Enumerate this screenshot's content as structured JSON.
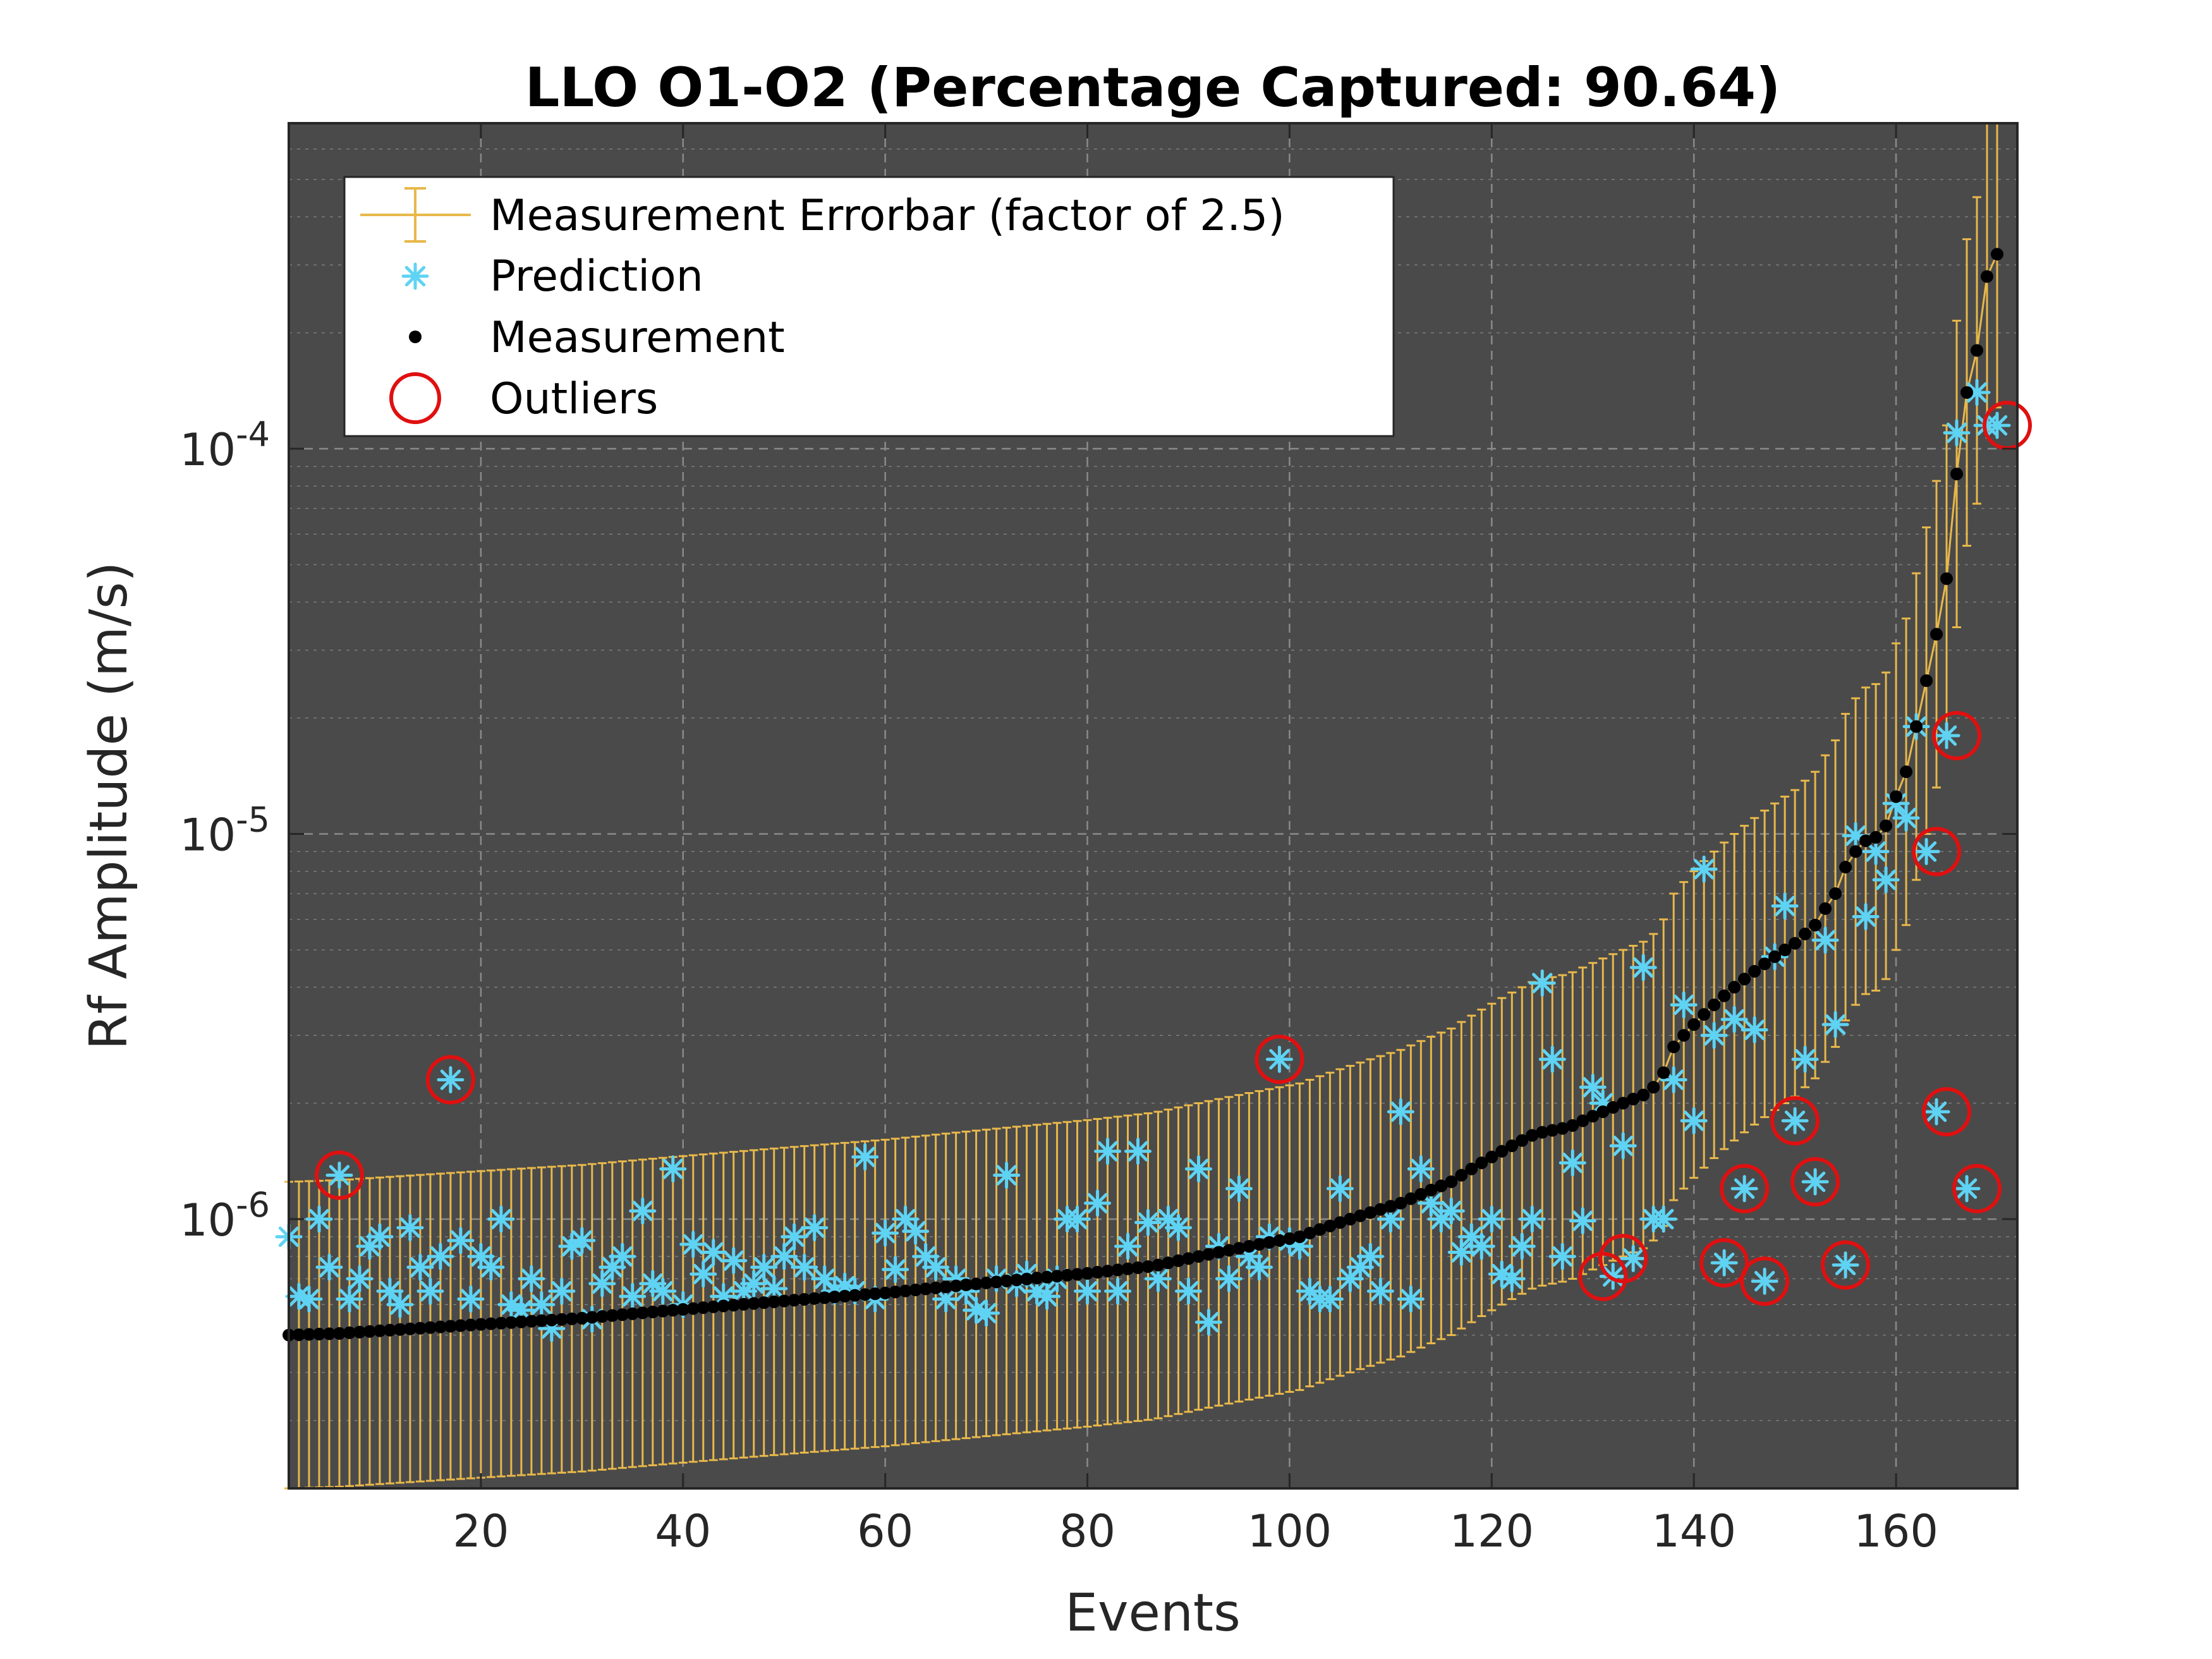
{
  "chart_data": {
    "type": "scatter",
    "title": "LLO O1-O2 (Percentage Captured: 90.64)",
    "xlabel": "Events",
    "ylabel": "Rf Amplitude (m/s)",
    "xlim": [
      1,
      172
    ],
    "ylim": [
      2e-07,
      0.0007
    ],
    "yscale": "log",
    "grid": true,
    "x_ticks": [
      {
        "value": 20,
        "label": "20"
      },
      {
        "value": 40,
        "label": "40"
      },
      {
        "value": 60,
        "label": "60"
      },
      {
        "value": 80,
        "label": "80"
      },
      {
        "value": 100,
        "label": "100"
      },
      {
        "value": 120,
        "label": "120"
      },
      {
        "value": 140,
        "label": "140"
      },
      {
        "value": 160,
        "label": "160"
      }
    ],
    "y_ticks": [
      {
        "value": 1e-06,
        "base": "10",
        "exp": "-6"
      },
      {
        "value": 1e-05,
        "base": "10",
        "exp": "-5"
      },
      {
        "value": 0.0001,
        "base": "10",
        "exp": "-4"
      }
    ],
    "legend": {
      "placement": "top-left",
      "entries": [
        {
          "label": "Measurement Errorbar (factor of 2.5)",
          "marker": "errorbar"
        },
        {
          "label": "Prediction",
          "marker": "asterisk"
        },
        {
          "label": "Measurement",
          "marker": "dot"
        },
        {
          "label": "Outliers",
          "marker": "circle"
        }
      ]
    },
    "errorbar_factor": 2.5,
    "colors": {
      "plot_background": "#4a4a4a",
      "grid": "#8a8a8a",
      "errorbar": "#e8b84a",
      "prediction": "#5fd3f3",
      "measurement": "#000000",
      "outlier": "#e01010"
    },
    "measurement": [
      5e-07,
      5.01e-07,
      5.02e-07,
      5.03e-07,
      5.04e-07,
      5.05e-07,
      5.07e-07,
      5.09e-07,
      5.11e-07,
      5.13e-07,
      5.15e-07,
      5.17e-07,
      5.19e-07,
      5.21e-07,
      5.23e-07,
      5.25e-07,
      5.27e-07,
      5.29e-07,
      5.31e-07,
      5.33e-07,
      5.35e-07,
      5.37e-07,
      5.39e-07,
      5.41e-07,
      5.43e-07,
      5.45e-07,
      5.47e-07,
      5.49e-07,
      5.51e-07,
      5.53e-07,
      5.56e-07,
      5.59e-07,
      5.62e-07,
      5.65e-07,
      5.68e-07,
      5.71e-07,
      5.74e-07,
      5.77e-07,
      5.8e-07,
      5.83e-07,
      5.86e-07,
      5.89e-07,
      5.92e-07,
      5.95e-07,
      5.98e-07,
      6.01e-07,
      6.04e-07,
      6.07e-07,
      6.1e-07,
      6.13e-07,
      6.16e-07,
      6.19e-07,
      6.22e-07,
      6.25e-07,
      6.28e-07,
      6.31e-07,
      6.34e-07,
      6.37e-07,
      6.4e-07,
      6.43e-07,
      6.47e-07,
      6.51e-07,
      6.55e-07,
      6.59e-07,
      6.63e-07,
      6.67e-07,
      6.71e-07,
      6.75e-07,
      6.79e-07,
      6.83e-07,
      6.87e-07,
      6.91e-07,
      6.95e-07,
      6.99e-07,
      7.03e-07,
      7.07e-07,
      7.11e-07,
      7.15e-07,
      7.19e-07,
      7.23e-07,
      7.28e-07,
      7.33e-07,
      7.38e-07,
      7.43e-07,
      7.48e-07,
      7.53e-07,
      7.6e-07,
      7.7e-07,
      7.8e-07,
      7.9e-07,
      8e-07,
      8.1e-07,
      8.2e-07,
      8.3e-07,
      8.4e-07,
      8.5e-07,
      8.6e-07,
      8.7e-07,
      8.8e-07,
      8.9e-07,
      9e-07,
      9.2e-07,
      9.4e-07,
      9.6e-07,
      9.8e-07,
      1e-06,
      1.02e-06,
      1.04e-06,
      1.06e-06,
      1.08e-06,
      1.1e-06,
      1.13e-06,
      1.16e-06,
      1.19e-06,
      1.22e-06,
      1.25e-06,
      1.3e-06,
      1.35e-06,
      1.4e-06,
      1.45e-06,
      1.5e-06,
      1.55e-06,
      1.6e-06,
      1.65e-06,
      1.68e-06,
      1.7e-06,
      1.72e-06,
      1.75e-06,
      1.8e-06,
      1.85e-06,
      1.9e-06,
      1.95e-06,
      2e-06,
      2.05e-06,
      2.1e-06,
      2.2e-06,
      2.4e-06,
      2.8e-06,
      3e-06,
      3.2e-06,
      3.4e-06,
      3.6e-06,
      3.8e-06,
      4e-06,
      4.2e-06,
      4.4e-06,
      4.6e-06,
      4.8e-06,
      5e-06,
      5.2e-06,
      5.5e-06,
      5.8e-06,
      6.4e-06,
      7e-06,
      8.2e-06,
      9e-06,
      9.6e-06,
      9.8e-06,
      1.05e-05,
      1.25e-05,
      1.45e-05,
      1.9e-05,
      2.5e-05,
      3.3e-05,
      4.6e-05,
      8.6e-05,
      0.00014,
      0.00018,
      0.00028,
      0.00032
    ],
    "prediction": [
      9e-07,
      6.3e-07,
      6.2e-07,
      1e-06,
      7.5e-07,
      1.3e-06,
      6.2e-07,
      7e-07,
      8.5e-07,
      9e-07,
      6.5e-07,
      6e-07,
      9.5e-07,
      7.5e-07,
      6.5e-07,
      8e-07,
      2.3e-06,
      8.8e-07,
      6.2e-07,
      8e-07,
      7.5e-07,
      1e-06,
      6e-07,
      5.8e-07,
      7e-07,
      6e-07,
      5.2e-07,
      6.5e-07,
      8.5e-07,
      8.8e-07,
      5.5e-07,
      6.8e-07,
      7.5e-07,
      8e-07,
      6.3e-07,
      1.05e-06,
      6.8e-07,
      6.5e-07,
      1.35e-06,
      6e-07,
      8.6e-07,
      7.2e-07,
      8.2e-07,
      6.3e-07,
      7.8e-07,
      6.5e-07,
      6.8e-07,
      7.5e-07,
      6.6e-07,
      8e-07,
      9e-07,
      7.5e-07,
      9.5e-07,
      7e-07,
      6.5e-07,
      6.7e-07,
      6.5e-07,
      1.45e-06,
      6.2e-07,
      9.2e-07,
      7.4e-07,
      1e-06,
      9.3e-07,
      8e-07,
      7.5e-07,
      6.2e-07,
      7e-07,
      6.5e-07,
      5.8e-07,
      5.7e-07,
      7e-07,
      1.3e-06,
      6.8e-07,
      7.2e-07,
      6.5e-07,
      6.3e-07,
      7e-07,
      1e-06,
      1e-06,
      6.5e-07,
      1.1e-06,
      1.5e-06,
      6.5e-07,
      8.5e-07,
      1.5e-06,
      9.8e-07,
      7e-07,
      1e-06,
      9.5e-07,
      6.5e-07,
      1.35e-06,
      5.4e-07,
      8.5e-07,
      7e-07,
      1.2e-06,
      8e-07,
      7.5e-07,
      9e-07,
      2.6e-06,
      8.8e-07,
      8.5e-07,
      6.5e-07,
      6.2e-07,
      6.2e-07,
      1.2e-06,
      7e-07,
      7.5e-07,
      8e-07,
      6.5e-07,
      1e-06,
      1.9e-06,
      6.2e-07,
      1.35e-06,
      1.1e-06,
      1e-06,
      1.05e-06,
      8.2e-07,
      9e-07,
      8.5e-07,
      1e-06,
      7.2e-07,
      7e-07,
      8.5e-07,
      1e-06,
      4.1e-06,
      2.6e-06,
      8e-07,
      1.4e-06,
      9.9e-07,
      2.2e-06,
      2e-06,
      7.1e-07,
      1.55e-06,
      7.9e-07,
      4.5e-06,
      1e-06,
      1e-06,
      2.3e-06,
      3.6e-06,
      1.8e-06,
      8.1e-06,
      3e-06,
      7.7e-07,
      3.3e-06,
      1.2e-06,
      3.1e-06,
      6.9e-07,
      4.8e-06,
      6.5e-06,
      1.8e-06,
      2.6e-06,
      1.25e-06,
      5.3e-06,
      3.2e-06,
      7.6e-07,
      9.9e-06,
      6.1e-06,
      9e-06,
      7.6e-06,
      1.2e-05,
      1.1e-05,
      1.9e-05,
      9e-06,
      1.9e-06,
      1.8e-05,
      0.00011,
      1.2e-06,
      0.00014,
      0.000115,
      0.000115
    ],
    "outliers": [
      {
        "x": 6,
        "y": 1.3e-06
      },
      {
        "x": 17,
        "y": 2.3e-06
      },
      {
        "x": 99,
        "y": 2.6e-06
      },
      {
        "x": 131,
        "y": 7.1e-07
      },
      {
        "x": 133,
        "y": 7.9e-07
      },
      {
        "x": 143,
        "y": 7.7e-07
      },
      {
        "x": 145,
        "y": 1.2e-06
      },
      {
        "x": 147,
        "y": 6.9e-07
      },
      {
        "x": 150,
        "y": 1.8e-06
      },
      {
        "x": 152,
        "y": 1.25e-06
      },
      {
        "x": 155,
        "y": 7.6e-07
      },
      {
        "x": 164,
        "y": 9e-06
      },
      {
        "x": 165,
        "y": 1.9e-06
      },
      {
        "x": 166,
        "y": 1.8e-05
      },
      {
        "x": 168,
        "y": 1.2e-06
      },
      {
        "x": 171,
        "y": 0.000115
      }
    ]
  }
}
